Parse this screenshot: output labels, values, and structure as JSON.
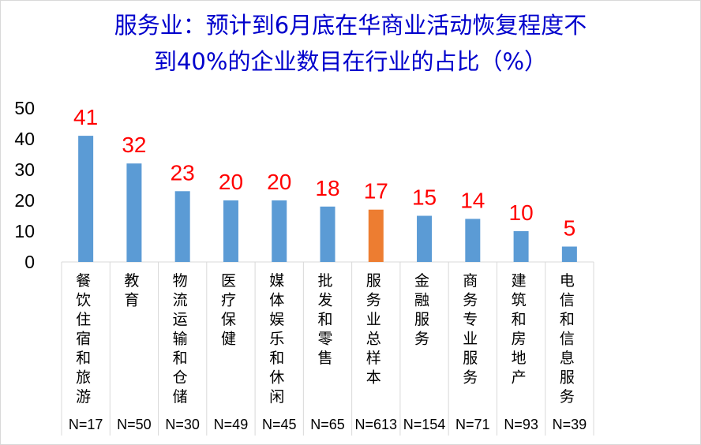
{
  "chart_data": {
    "type": "bar",
    "title_line1": "服务业：预计到6月底在华商业活动恢复程度不",
    "title_line2": "到40%的企业数目在行业的占比（%）",
    "categories": [
      "餐饮住宿和旅游",
      "教育",
      "物流运输和仓储",
      "医疗保健",
      "媒体娱乐和休闲",
      "批发和零售",
      "服务业总样本",
      "金融服务",
      "商务专业服务",
      "建筑和房地产",
      "电信和信息服务"
    ],
    "sample_sizes": [
      "N=17",
      "N=50",
      "N=30",
      "N=49",
      "N=45",
      "N=65",
      "N=613",
      "N=154",
      "N=71",
      "N=93",
      "N=39"
    ],
    "values": [
      41,
      32,
      23,
      20,
      20,
      18,
      17,
      15,
      14,
      10,
      5
    ],
    "highlight_index": 6,
    "ylim": [
      0,
      50
    ],
    "yticks": [
      0,
      10,
      20,
      30,
      40,
      50
    ],
    "colors": {
      "bar": "#5b9bd5",
      "highlight": "#ed7d31",
      "data_label": "#ff0000",
      "title": "#0000cc"
    },
    "grid": false
  }
}
